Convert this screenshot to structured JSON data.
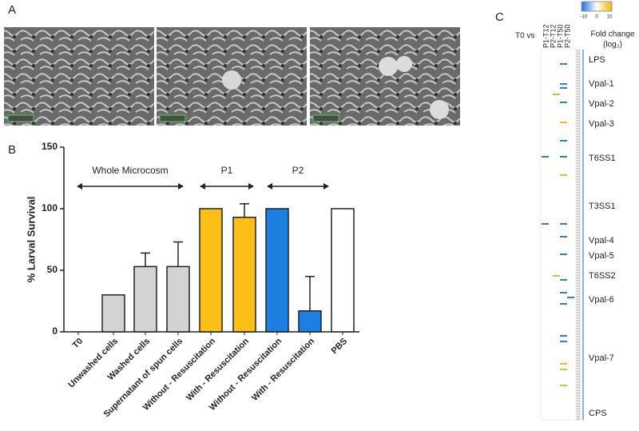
{
  "panels": [
    "A",
    "B",
    "C"
  ],
  "chart_data": {
    "type": "bar",
    "ylabel": "% Larval Survival",
    "categories": [
      "T0",
      "Unwashed cells",
      "Washed cells",
      "Supernatant of spun cells",
      "Without - Resuscitation",
      "With - Resuscitation",
      "Without - Resuscitation",
      "With - Resuscitation",
      "PBS"
    ],
    "values": [
      0,
      30,
      53,
      53,
      100,
      93,
      100,
      17,
      100
    ],
    "errors": [
      null,
      null,
      11,
      20,
      null,
      11,
      null,
      28,
      null
    ],
    "colors": [
      "#d3d3d3",
      "#d3d3d3",
      "#d3d3d3",
      "#d3d3d3",
      "#fbbf17",
      "#fbbf17",
      "#1d7fe0",
      "#1d7fe0",
      "#ffffff"
    ],
    "annotations": [
      "Whole Microcosm",
      "P1",
      "P2"
    ],
    "ylim": [
      0,
      150
    ],
    "yticks": [
      0,
      50,
      100,
      150
    ]
  },
  "heatmap": {
    "prefix": "T0 vs",
    "columns": [
      "P1-T12",
      "P2-T12",
      "P1-T50",
      "P2-T50"
    ],
    "colorbar_ticks": [
      -10,
      0,
      10
    ],
    "colorbar_title": "Fold change",
    "colorbar_unit": "(log₂)",
    "rows": [
      "LPS",
      "Vpal-1",
      "Vpal-2",
      "Vpal-3",
      "T6SS1",
      "T3SS1",
      "Vpal-4",
      "Vpal-5",
      "T6SS2",
      "Vpal-6",
      "Vpal-7",
      "CPS"
    ]
  }
}
